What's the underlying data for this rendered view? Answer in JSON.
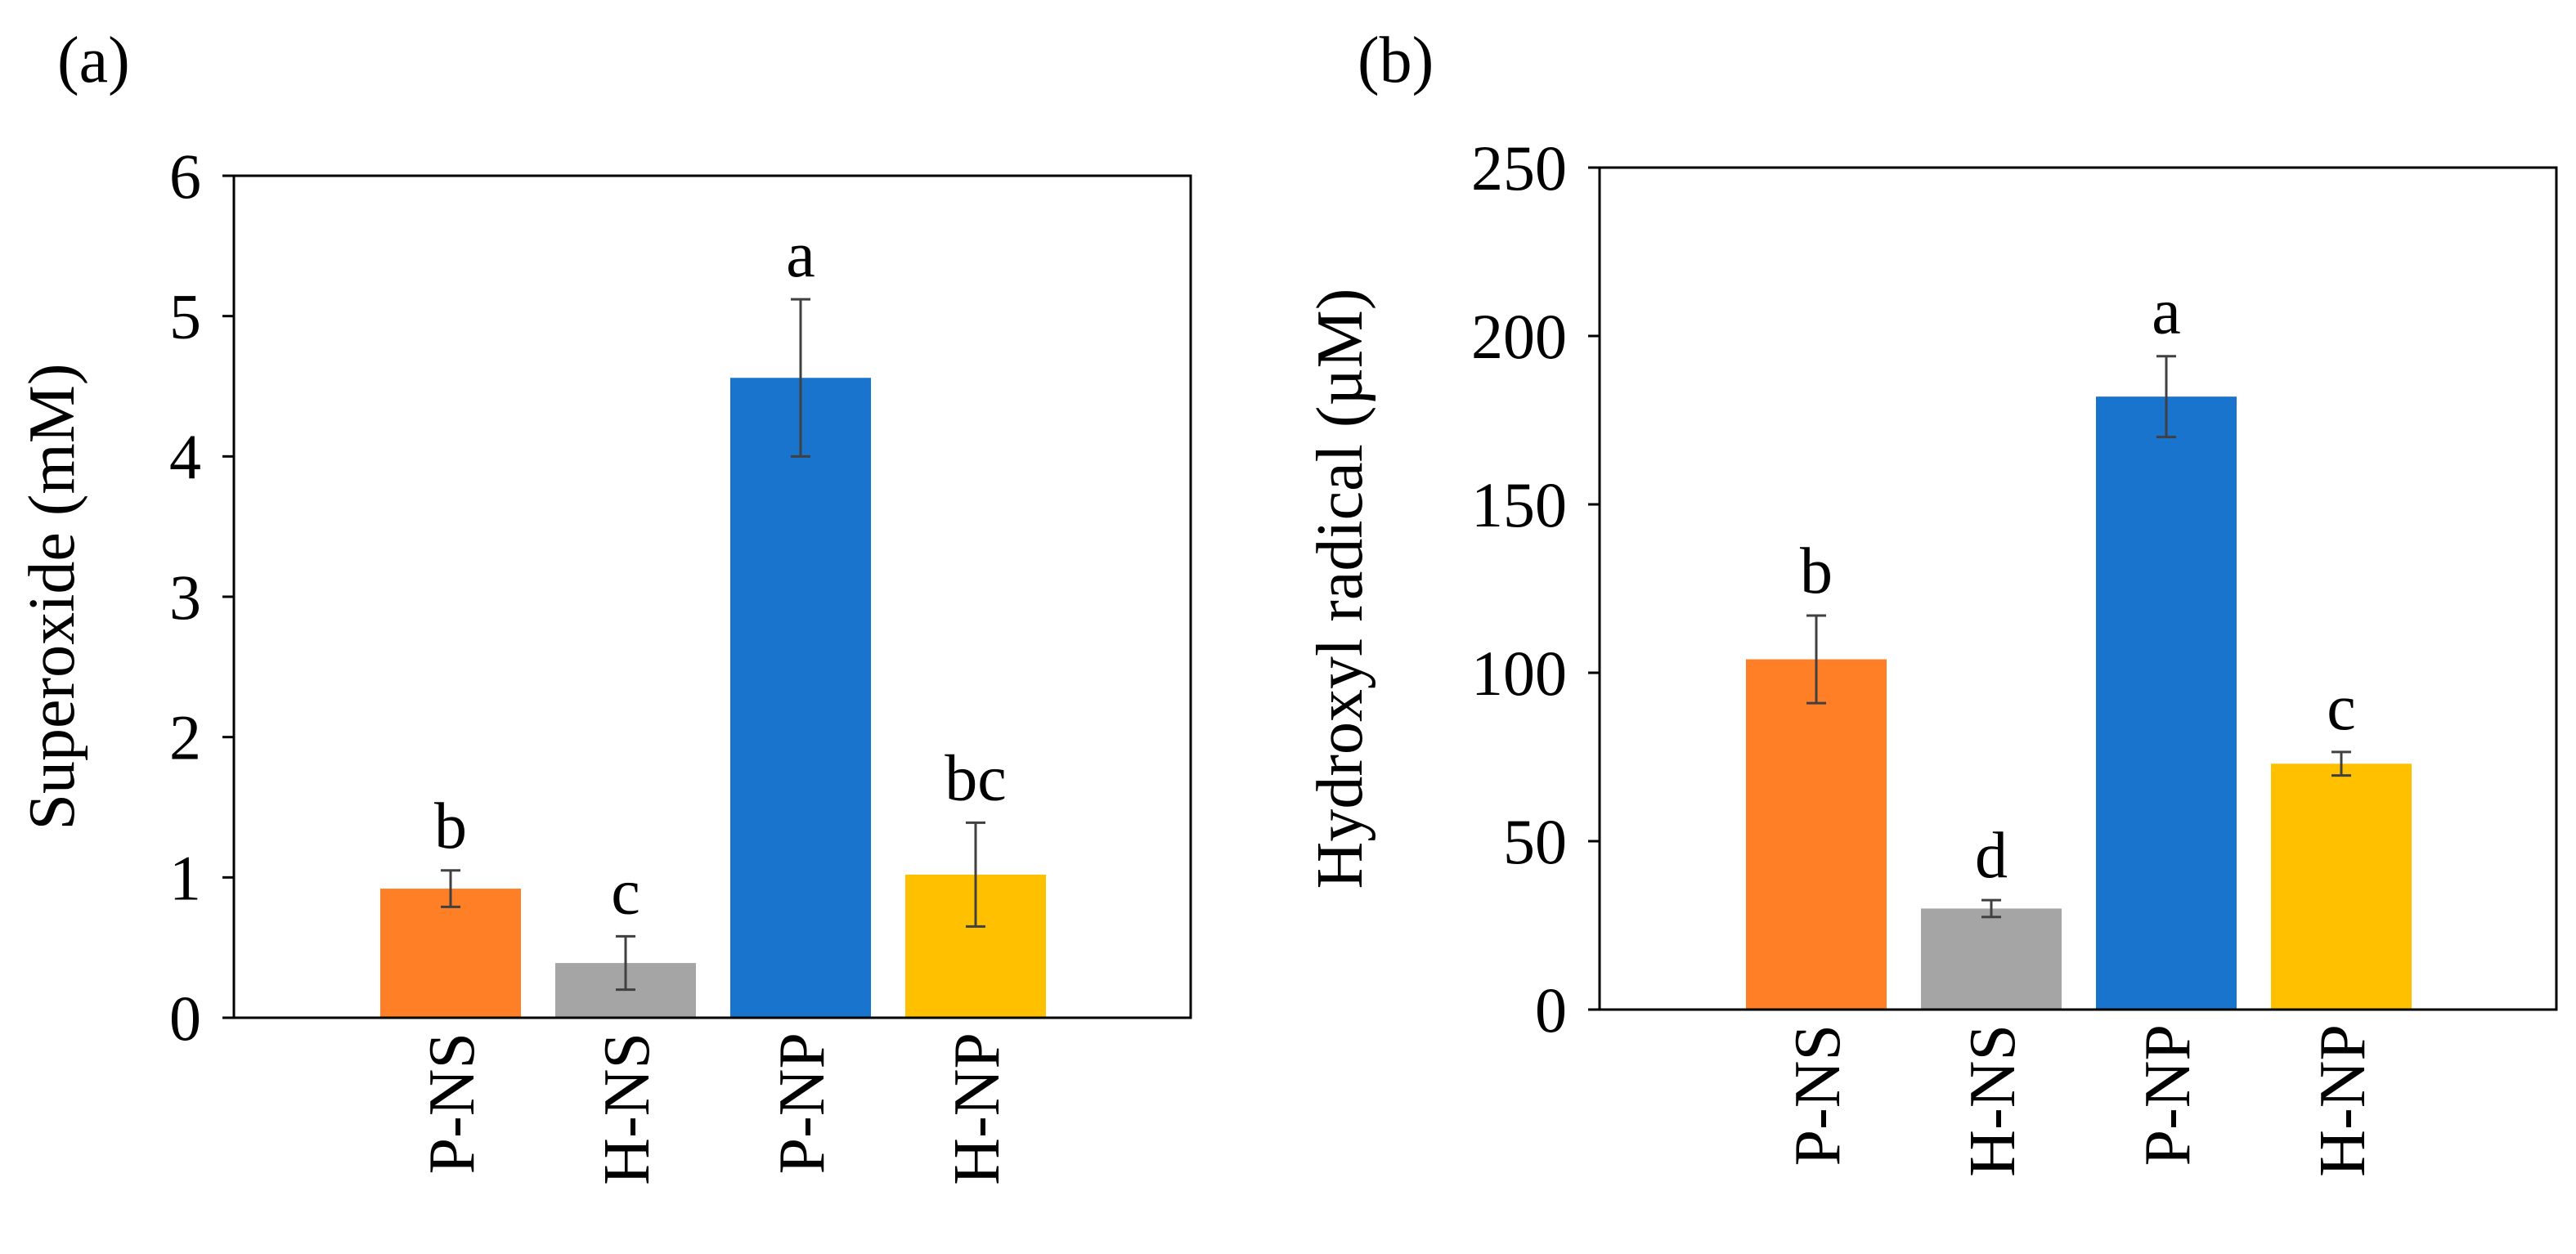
{
  "chart_data": [
    {
      "type": "bar",
      "panel_label": "(a)",
      "title": "",
      "xlabel": "",
      "ylabel": "Superoxide (mM)",
      "ylim": [
        0,
        6
      ],
      "yticks": [
        0,
        1,
        2,
        3,
        4,
        5,
        6
      ],
      "grid": false,
      "categories": [
        "P-NS",
        "H-NS",
        "P-NP",
        "H-NP"
      ],
      "values": [
        0.92,
        0.39,
        4.56,
        1.02
      ],
      "errors": [
        0.13,
        0.19,
        0.56,
        0.37
      ],
      "significance": [
        "b",
        "c",
        "a",
        "bc"
      ],
      "colors": [
        "#FF7F27",
        "#A5A5A5",
        "#1874CD",
        "#FFC000"
      ]
    },
    {
      "type": "bar",
      "panel_label": "(b)",
      "title": "",
      "xlabel": "",
      "ylabel": "Hydroxyl radical (µM)",
      "ylim": [
        0,
        250
      ],
      "yticks": [
        0,
        50,
        100,
        150,
        200,
        250
      ],
      "grid": false,
      "categories": [
        "P-NS",
        "H-NS",
        "P-NP",
        "H-NP"
      ],
      "values": [
        104,
        30,
        182,
        73
      ],
      "errors": [
        13,
        2.5,
        12,
        3.5
      ],
      "significance": [
        "b",
        "d",
        "a",
        "c"
      ],
      "colors": [
        "#FF7F27",
        "#A5A5A5",
        "#1874CD",
        "#FFC000"
      ]
    }
  ]
}
